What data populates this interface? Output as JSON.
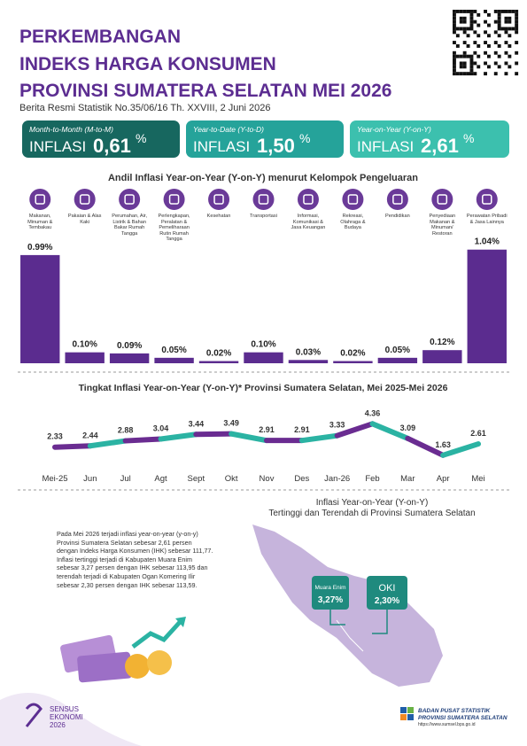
{
  "header": {
    "title_lines": [
      "PERKEMBANGAN",
      "INDEKS HARGA KONSUMEN",
      "PROVINSI SUMATERA SELATAN MEI 2026"
    ],
    "subtitle": "Berita Resmi Statistik No.35/06/16 Th. XXVIII, 2 Juni 2026"
  },
  "cards": [
    {
      "label": "Month-to-Month (M-to-M)",
      "word": "INFLASI",
      "value": "0,61",
      "unit": "%",
      "color": "#17675f"
    },
    {
      "label": "Year-to-Date (Y-to-D)",
      "word": "INFLASI",
      "value": "1,50",
      "unit": "%",
      "color": "#25a39a"
    },
    {
      "label": "Year-on-Year (Y-on-Y)",
      "word": "INFLASI",
      "value": "2,61",
      "unit": "%",
      "color": "#3cc0ae"
    }
  ],
  "chart_data": [
    {
      "type": "bar",
      "title": "Andil Inflasi Year-on-Year (Y-on-Y) menurut Kelompok Pengeluaran",
      "categories": [
        "Makanan, Minuman & Tembakau",
        "Pakaian & Alas Kaki",
        "Perumahan, Air, Listrik & Bahan Bakar Rumah Tangga",
        "Perlengkapan, Peralatan & Pemeliharaan Rutin Rumah Tangga",
        "Kesehatan",
        "Transportasi",
        "Informasi, Komunikasi & Jasa Keuangan",
        "Rekreasi, Olahraga & Budaya",
        "Pendidikan",
        "Penyediaan Makanan & Minuman/ Restoran",
        "Perawatan Pribadi & Jasa Lainnya"
      ],
      "values": [
        0.99,
        0.1,
        0.09,
        0.05,
        0.02,
        0.1,
        0.03,
        0.02,
        0.05,
        0.12,
        1.04
      ],
      "value_labels": [
        "0.99%",
        "0.10%",
        "0.09%",
        "0.05%",
        "0.02%",
        "0.10%",
        "0.03%",
        "0.02%",
        "0.05%",
        "0.12%",
        "1.04%"
      ],
      "color": "#5b2c8f",
      "ylim": [
        0,
        1.2
      ]
    },
    {
      "type": "line",
      "title": "Tingkat Inflasi Year-on-Year (Y-on-Y)* Provinsi Sumatera Selatan, Mei 2025-Mei 2026",
      "categories": [
        "Mei-25",
        "Jun",
        "Jul",
        "Agt",
        "Sept",
        "Okt",
        "Nov",
        "Des",
        "Jan-26",
        "Feb",
        "Mar",
        "Apr",
        "Mei"
      ],
      "values": [
        2.33,
        2.44,
        2.88,
        3.04,
        3.44,
        3.49,
        2.91,
        2.91,
        3.33,
        4.36,
        3.09,
        1.63,
        2.61
      ],
      "segment_colors": [
        "#6a2c91",
        "#2bb3a3"
      ],
      "ylim": [
        1,
        5
      ]
    }
  ],
  "map": {
    "title_lines": [
      "Inflasi Year-on-Year (Y-on-Y)",
      "Tertinggi dan Terendah di Provinsi Sumatera Selatan"
    ],
    "paragraph": "Pada Mei 2026 terjadi inflasi year-on-year (y-on-y) Provinsi Sumatera Selatan sebesar 2,61 persen dengan Indeks Harga Konsumen (IHK) sebesar 111,77. Inflasi tertinggi terjadi di Kabupaten Muara Enim sebesar 3,27 persen dengan IHK sebesar 113,95 dan terendah terjadi di Kabupaten Ogan Komering Ilir sebesar 2,30 persen dengan IHK sebesar 113,59.",
    "callouts": [
      {
        "name": "Muara Enim",
        "value": "3,27%"
      },
      {
        "name": "OKI",
        "value": "2,30%"
      }
    ]
  },
  "footer": {
    "sensus_lines": [
      "SENSUS",
      "EKONOMI",
      "2026"
    ],
    "bps_lines": [
      "BADAN PUSAT STATISTIK",
      "PROVINSI SUMATERA SELATAN",
      "https://www.sumsel.bps.go.id"
    ]
  }
}
